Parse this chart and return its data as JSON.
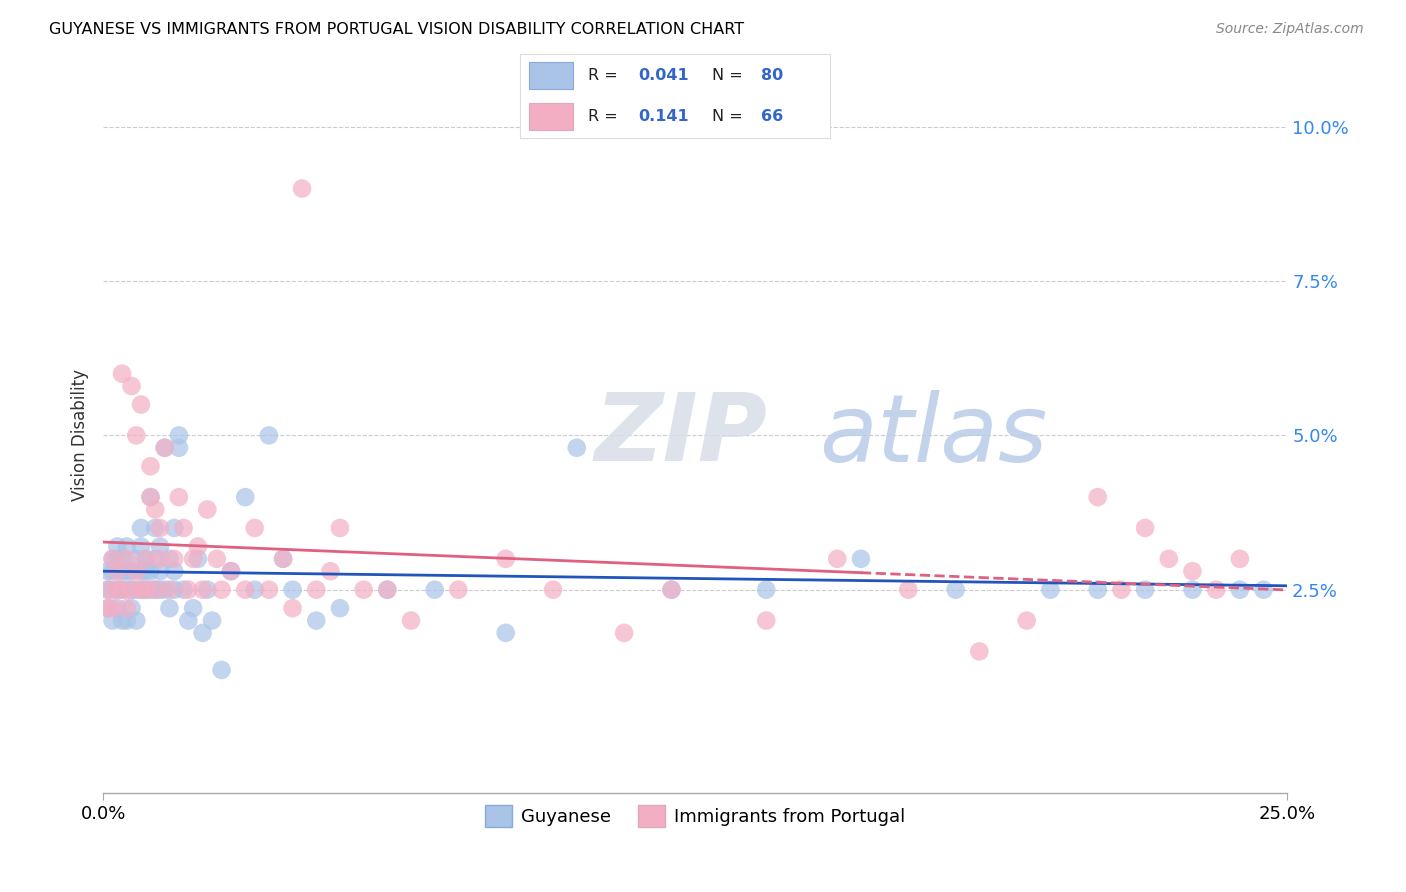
{
  "title": "GUYANESE VS IMMIGRANTS FROM PORTUGAL VISION DISABILITY CORRELATION CHART",
  "source": "Source: ZipAtlas.com",
  "ylabel": "Vision Disability",
  "xlim": [
    0.0,
    0.25
  ],
  "ylim": [
    -0.008,
    0.108
  ],
  "blue_R": 0.041,
  "blue_N": 80,
  "pink_R": 0.141,
  "pink_N": 66,
  "blue_color": "#aac4e8",
  "pink_color": "#f4aec4",
  "blue_line_color": "#2255bb",
  "pink_line_color": "#e06080",
  "legend_label_blue": "Guyanese",
  "legend_label_pink": "Immigrants from Portugal",
  "blue_x": [
    0.001,
    0.001,
    0.001,
    0.002,
    0.002,
    0.002,
    0.002,
    0.003,
    0.003,
    0.003,
    0.003,
    0.004,
    0.004,
    0.004,
    0.004,
    0.005,
    0.005,
    0.005,
    0.005,
    0.006,
    0.006,
    0.006,
    0.007,
    0.007,
    0.007,
    0.008,
    0.008,
    0.008,
    0.008,
    0.009,
    0.009,
    0.009,
    0.01,
    0.01,
    0.01,
    0.011,
    0.011,
    0.011,
    0.012,
    0.012,
    0.012,
    0.013,
    0.013,
    0.014,
    0.014,
    0.015,
    0.015,
    0.015,
    0.016,
    0.016,
    0.017,
    0.018,
    0.019,
    0.02,
    0.021,
    0.022,
    0.023,
    0.025,
    0.027,
    0.03,
    0.032,
    0.035,
    0.038,
    0.04,
    0.045,
    0.05,
    0.06,
    0.07,
    0.085,
    0.1,
    0.12,
    0.14,
    0.16,
    0.18,
    0.2,
    0.21,
    0.22,
    0.23,
    0.24,
    0.245
  ],
  "blue_y": [
    0.025,
    0.022,
    0.028,
    0.02,
    0.025,
    0.03,
    0.028,
    0.022,
    0.025,
    0.03,
    0.032,
    0.025,
    0.028,
    0.02,
    0.03,
    0.025,
    0.028,
    0.032,
    0.02,
    0.025,
    0.028,
    0.022,
    0.03,
    0.025,
    0.02,
    0.028,
    0.032,
    0.025,
    0.035,
    0.025,
    0.03,
    0.028,
    0.04,
    0.028,
    0.025,
    0.03,
    0.035,
    0.025,
    0.028,
    0.032,
    0.025,
    0.048,
    0.025,
    0.03,
    0.022,
    0.028,
    0.035,
    0.025,
    0.05,
    0.048,
    0.025,
    0.02,
    0.022,
    0.03,
    0.018,
    0.025,
    0.02,
    0.012,
    0.028,
    0.04,
    0.025,
    0.05,
    0.03,
    0.025,
    0.02,
    0.022,
    0.025,
    0.025,
    0.018,
    0.048,
    0.025,
    0.025,
    0.03,
    0.025,
    0.025,
    0.025,
    0.025,
    0.025,
    0.025,
    0.025
  ],
  "pink_x": [
    0.001,
    0.001,
    0.002,
    0.002,
    0.003,
    0.003,
    0.004,
    0.004,
    0.005,
    0.005,
    0.006,
    0.006,
    0.007,
    0.007,
    0.008,
    0.008,
    0.009,
    0.009,
    0.01,
    0.01,
    0.011,
    0.011,
    0.012,
    0.012,
    0.013,
    0.014,
    0.015,
    0.016,
    0.017,
    0.018,
    0.019,
    0.02,
    0.021,
    0.022,
    0.024,
    0.025,
    0.027,
    0.03,
    0.032,
    0.035,
    0.038,
    0.04,
    0.042,
    0.045,
    0.048,
    0.05,
    0.055,
    0.06,
    0.065,
    0.075,
    0.085,
    0.095,
    0.11,
    0.12,
    0.14,
    0.155,
    0.17,
    0.185,
    0.195,
    0.21,
    0.215,
    0.22,
    0.225,
    0.23,
    0.235,
    0.24
  ],
  "pink_y": [
    0.025,
    0.022,
    0.03,
    0.022,
    0.025,
    0.028,
    0.06,
    0.025,
    0.03,
    0.022,
    0.058,
    0.025,
    0.028,
    0.05,
    0.025,
    0.055,
    0.03,
    0.025,
    0.04,
    0.045,
    0.025,
    0.038,
    0.03,
    0.035,
    0.048,
    0.025,
    0.03,
    0.04,
    0.035,
    0.025,
    0.03,
    0.032,
    0.025,
    0.038,
    0.03,
    0.025,
    0.028,
    0.025,
    0.035,
    0.025,
    0.03,
    0.022,
    0.09,
    0.025,
    0.028,
    0.035,
    0.025,
    0.025,
    0.02,
    0.025,
    0.03,
    0.025,
    0.018,
    0.025,
    0.02,
    0.03,
    0.025,
    0.015,
    0.02,
    0.04,
    0.025,
    0.035,
    0.03,
    0.028,
    0.025,
    0.03
  ]
}
